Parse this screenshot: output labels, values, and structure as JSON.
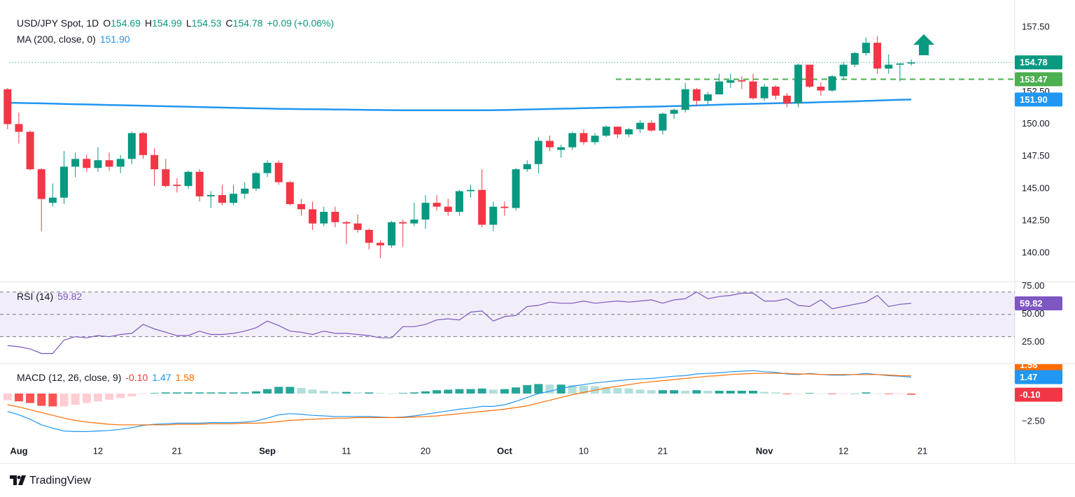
{
  "chart_data": [
    {
      "type": "candlestick",
      "title": "USD/JPY Spot, 1D",
      "ohlc_labels": [
        "O",
        "H",
        "L",
        "C"
      ],
      "change": {
        "value": 0.09,
        "label": "+0.09"
      },
      "change_pct": {
        "value": 0.06,
        "label": "(+0.06%)"
      },
      "up_color": "#089981",
      "down_color": "#f23645",
      "open": [
        152.7,
        150.0,
        149.4,
        146.5,
        143.9,
        144.3,
        146.7,
        147.3,
        146.6,
        147.2,
        146.7,
        147.3,
        149.3,
        147.6,
        146.5,
        145.3,
        145.2,
        146.3,
        144.4,
        144.5,
        143.9,
        144.6,
        145.0,
        146.2,
        147.0,
        145.5,
        143.8,
        143.4,
        142.3,
        143.2,
        142.4,
        142.3,
        141.8,
        140.8,
        140.6,
        142.4,
        142.3,
        142.6,
        143.9,
        143.6,
        143.2,
        144.8,
        144.9,
        142.2,
        143.6,
        143.5,
        146.5,
        146.9,
        148.7,
        148.0,
        148.2,
        149.3,
        148.6,
        149.1,
        149.8,
        149.2,
        149.6,
        150.1,
        149.5,
        150.8,
        151.1,
        152.7,
        151.8,
        152.3,
        153.2,
        153.4,
        153.3,
        152.0,
        152.9,
        152.2,
        151.6,
        154.6,
        152.9,
        152.6,
        153.7,
        154.6,
        155.5,
        156.3,
        154.3,
        154.6,
        154.69
      ],
      "high": [
        152.8,
        150.9,
        149.5,
        146.6,
        145.4,
        147.9,
        147.8,
        147.6,
        148.2,
        147.8,
        147.6,
        149.4,
        149.4,
        148.1,
        147.3,
        145.8,
        146.4,
        146.5,
        144.8,
        145.3,
        145.3,
        145.5,
        146.3,
        147.2,
        147.2,
        145.6,
        144.2,
        144.0,
        143.6,
        143.6,
        142.5,
        143.0,
        141.9,
        141.0,
        142.5,
        142.6,
        143.9,
        144.5,
        144.5,
        144.2,
        144.9,
        145.3,
        146.5,
        144.0,
        144.0,
        146.6,
        147.2,
        149.0,
        149.1,
        148.4,
        149.4,
        149.6,
        149.3,
        149.9,
        149.8,
        149.7,
        150.3,
        150.3,
        150.9,
        151.2,
        153.2,
        152.8,
        152.5,
        153.9,
        153.9,
        153.7,
        153.9,
        153.1,
        153.0,
        152.4,
        154.7,
        154.6,
        153.2,
        153.8,
        154.8,
        155.6,
        156.7,
        156.8,
        155.4,
        154.7,
        154.99
      ],
      "low": [
        149.6,
        148.5,
        146.4,
        141.7,
        143.6,
        143.8,
        145.9,
        146.3,
        146.3,
        146.4,
        146.2,
        146.9,
        147.3,
        145.2,
        145.1,
        144.7,
        145.0,
        144.0,
        143.5,
        143.7,
        143.7,
        144.2,
        144.8,
        145.9,
        145.3,
        143.7,
        142.9,
        141.8,
        142.1,
        142.0,
        140.7,
        141.6,
        140.3,
        139.6,
        140.4,
        140.5,
        142.1,
        141.9,
        143.3,
        142.9,
        142.9,
        144.3,
        142.0,
        141.7,
        142.9,
        143.3,
        146.3,
        146.2,
        147.9,
        147.4,
        148.0,
        148.4,
        148.4,
        149.0,
        148.9,
        149.0,
        149.3,
        149.4,
        149.2,
        150.4,
        150.9,
        151.4,
        151.5,
        152.3,
        152.8,
        152.7,
        151.9,
        151.8,
        151.9,
        151.3,
        151.3,
        152.8,
        152.2,
        152.5,
        153.4,
        154.4,
        155.3,
        153.9,
        153.9,
        153.3,
        154.53
      ],
      "close": [
        150.0,
        149.4,
        146.5,
        144.2,
        144.3,
        146.7,
        147.3,
        146.6,
        147.2,
        146.7,
        147.3,
        149.3,
        147.6,
        146.5,
        145.2,
        145.2,
        146.3,
        144.4,
        144.5,
        143.9,
        144.6,
        145.0,
        146.2,
        147.0,
        145.5,
        143.8,
        143.4,
        142.3,
        143.2,
        142.4,
        142.3,
        141.8,
        140.8,
        140.6,
        142.4,
        142.3,
        142.6,
        143.9,
        143.6,
        143.2,
        144.8,
        144.9,
        142.2,
        143.6,
        143.5,
        146.5,
        146.9,
        148.7,
        148.2,
        148.2,
        149.3,
        148.6,
        149.1,
        149.8,
        149.2,
        149.6,
        150.1,
        149.5,
        150.8,
        151.1,
        152.7,
        151.8,
        152.3,
        153.3,
        153.4,
        153.3,
        152.0,
        152.9,
        152.2,
        151.6,
        154.6,
        152.9,
        152.6,
        153.7,
        154.6,
        155.5,
        156.3,
        154.3,
        154.6,
        154.7,
        154.78
      ],
      "series": [
        {
          "name": "MA (200, close, 0)",
          "color": "#2196f3",
          "legend_value": {
            "value": 151.9,
            "label": "151.90"
          },
          "values": [
            151.65,
            151.64,
            151.62,
            151.6,
            151.58,
            151.56,
            151.54,
            151.52,
            151.5,
            151.48,
            151.46,
            151.44,
            151.42,
            151.4,
            151.38,
            151.36,
            151.34,
            151.32,
            151.3,
            151.28,
            151.26,
            151.24,
            151.22,
            151.2,
            151.18,
            151.17,
            151.16,
            151.15,
            151.14,
            151.13,
            151.12,
            151.11,
            151.1,
            151.09,
            151.08,
            151.07,
            151.07,
            151.07,
            151.07,
            151.07,
            151.07,
            151.07,
            151.07,
            151.08,
            151.09,
            151.11,
            151.13,
            151.15,
            151.17,
            151.19,
            151.21,
            151.23,
            151.25,
            151.27,
            151.29,
            151.31,
            151.33,
            151.35,
            151.37,
            151.39,
            151.41,
            151.44,
            151.47,
            151.5,
            151.53,
            151.55,
            151.57,
            151.59,
            151.61,
            151.63,
            151.65,
            151.67,
            151.7,
            151.72,
            151.74,
            151.76,
            151.79,
            151.82,
            151.85,
            151.88,
            151.9
          ]
        }
      ],
      "levels": [
        {
          "value": 153.47,
          "color": "#4caf50"
        }
      ],
      "ylim": [
        137.95,
        158.8
      ],
      "yticks": [
        {
          "value": 157.5,
          "label": "157.50"
        },
        {
          "value": 152.5,
          "label": "152.50"
        },
        {
          "value": 150,
          "label": "150.00"
        },
        {
          "value": 147.5,
          "label": "147.50"
        },
        {
          "value": 145,
          "label": "145.00"
        },
        {
          "value": 142.5,
          "label": "142.50"
        },
        {
          "value": 140,
          "label": "140.00"
        }
      ],
      "xlim": [
        -0.67,
        89.17
      ]
    },
    {
      "type": "line",
      "title": "RSI (14)",
      "series": [
        {
          "color": "#7e57c2",
          "values": [
            22,
            21,
            19,
            15,
            15,
            27,
            30,
            29,
            31,
            30,
            32,
            33,
            41,
            37,
            34,
            31,
            31,
            35,
            32,
            32,
            33,
            35,
            38,
            44,
            40,
            35,
            34,
            32,
            35,
            33,
            33,
            32,
            31,
            29,
            29,
            39,
            39,
            41,
            45,
            46,
            45,
            52,
            53,
            44,
            48,
            49,
            57,
            58,
            61,
            60,
            60,
            62,
            60,
            61,
            62,
            61,
            62,
            63,
            60,
            63,
            64,
            70,
            64,
            66,
            67,
            69,
            69,
            62,
            62,
            64,
            58,
            57,
            63,
            55,
            57,
            59,
            61,
            67,
            57,
            59,
            59.82
          ]
        }
      ],
      "levels": [
        70,
        50,
        30
      ],
      "ylim": [
        6,
        78
      ],
      "yticks": [
        {
          "value": 75,
          "label": "75.00"
        },
        {
          "value": 50,
          "label": "50.00"
        },
        {
          "value": 25,
          "label": "25.00"
        }
      ]
    },
    {
      "type": "macd",
      "title": "MACD (12, 26, close, 9)",
      "series": [
        {
          "color": "#2196f3",
          "values": [
            -1.6,
            -1.9,
            -2.3,
            -2.8,
            -3.1,
            -3.35,
            -3.4,
            -3.4,
            -3.35,
            -3.3,
            -3.2,
            -3.05,
            -2.85,
            -2.75,
            -2.7,
            -2.65,
            -2.65,
            -2.65,
            -2.6,
            -2.6,
            -2.6,
            -2.55,
            -2.45,
            -2.2,
            -1.9,
            -1.8,
            -1.85,
            -1.95,
            -2.0,
            -2.05,
            -2.05,
            -2.05,
            -2.05,
            -2.1,
            -2.15,
            -2.1,
            -2.0,
            -1.85,
            -1.7,
            -1.55,
            -1.4,
            -1.3,
            -1.15,
            -1.15,
            -1.0,
            -0.7,
            -0.35,
            0.0,
            0.2,
            0.45,
            0.65,
            0.8,
            0.95,
            1.05,
            1.15,
            1.25,
            1.3,
            1.35,
            1.45,
            1.55,
            1.6,
            1.75,
            1.8,
            1.85,
            1.95,
            2.0,
            2.05,
            1.95,
            1.9,
            1.75,
            1.7,
            1.8,
            1.7,
            1.65,
            1.65,
            1.7,
            1.8,
            1.7,
            1.6,
            1.55,
            1.47
          ]
        },
        {
          "color": "#ff6d00",
          "values": [
            -1.0,
            -1.2,
            -1.45,
            -1.7,
            -1.95,
            -2.2,
            -2.4,
            -2.55,
            -2.65,
            -2.75,
            -2.8,
            -2.8,
            -2.8,
            -2.8,
            -2.8,
            -2.75,
            -2.75,
            -2.75,
            -2.7,
            -2.7,
            -2.7,
            -2.65,
            -2.65,
            -2.6,
            -2.5,
            -2.4,
            -2.35,
            -2.3,
            -2.25,
            -2.2,
            -2.2,
            -2.15,
            -2.15,
            -2.15,
            -2.15,
            -2.15,
            -2.1,
            -2.05,
            -2.0,
            -1.9,
            -1.8,
            -1.7,
            -1.6,
            -1.5,
            -1.4,
            -1.25,
            -1.1,
            -0.85,
            -0.6,
            -0.35,
            -0.1,
            0.1,
            0.3,
            0.5,
            0.65,
            0.8,
            0.95,
            1.05,
            1.15,
            1.25,
            1.35,
            1.45,
            1.55,
            1.6,
            1.7,
            1.75,
            1.8,
            1.8,
            1.8,
            1.8,
            1.75,
            1.75,
            1.7,
            1.7,
            1.7,
            1.7,
            1.7,
            1.7,
            1.65,
            1.6,
            1.58
          ]
        },
        {
          "colors": [
            "#26a69a",
            "#b2dfdb",
            "#ffcdd2",
            "#ff5252"
          ],
          "color": "#f23645",
          "legend_value": {
            "value": -0.1,
            "label": "-0.10"
          },
          "values": [
            -0.6,
            -0.7,
            -0.85,
            -1.1,
            -1.15,
            -1.15,
            -1.0,
            -0.85,
            -0.7,
            -0.55,
            -0.4,
            -0.25,
            -0.05,
            0.05,
            0.1,
            0.1,
            0.1,
            0.1,
            0.1,
            0.1,
            0.1,
            0.1,
            0.2,
            0.4,
            0.6,
            0.6,
            0.5,
            0.35,
            0.25,
            0.15,
            0.15,
            0.1,
            0.1,
            0.05,
            0,
            0.05,
            0.1,
            0.2,
            0.3,
            0.35,
            0.4,
            0.4,
            0.45,
            0.35,
            0.4,
            0.55,
            0.75,
            0.85,
            0.8,
            0.8,
            0.75,
            0.7,
            0.65,
            0.55,
            0.5,
            0.45,
            0.35,
            0.3,
            0.3,
            0.3,
            0.25,
            0.3,
            0.25,
            0.25,
            0.25,
            0.25,
            0.25,
            0.15,
            0.1,
            -0.05,
            -0.05,
            0.05,
            0,
            -0.05,
            -0.05,
            0,
            0.1,
            0,
            -0.05,
            -0.05,
            -0.1
          ]
        }
      ],
      "ylim": [
        -6.25,
        2.625
      ],
      "yticks": [
        {
          "value": -2.5,
          "label": "−2.50"
        }
      ],
      "xticks": [
        {
          "value": 1,
          "label": "Aug"
        },
        {
          "value": 8,
          "label": "12"
        },
        {
          "value": 15,
          "label": "21"
        },
        {
          "value": 23,
          "label": "Sep"
        },
        {
          "value": 30,
          "label": "11"
        },
        {
          "value": 37,
          "label": "20"
        },
        {
          "value": 44,
          "label": "Oct"
        },
        {
          "value": 51,
          "label": "10"
        },
        {
          "value": 58,
          "label": "21"
        },
        {
          "value": 67,
          "label": "Nov"
        },
        {
          "value": 74,
          "label": "12"
        },
        {
          "value": 81,
          "label": "21"
        }
      ]
    }
  ],
  "footer": {
    "brand": "TradingView"
  }
}
